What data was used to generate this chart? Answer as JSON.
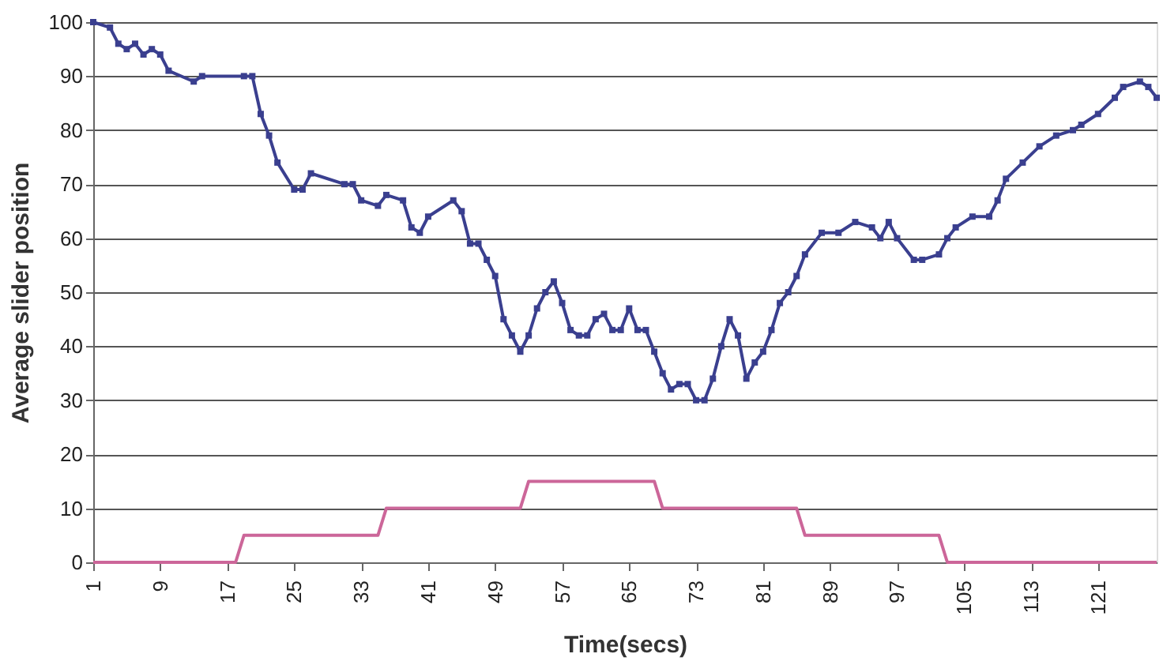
{
  "chart_data": {
    "type": "line",
    "xlabel": "Time(secs)",
    "ylabel": "Average slider position",
    "xlim": [
      1,
      128
    ],
    "xticks": [
      1,
      9,
      17,
      25,
      33,
      41,
      49,
      57,
      65,
      73,
      81,
      89,
      97,
      105,
      113,
      121
    ],
    "ylim": [
      0,
      100
    ],
    "yticks": [
      0,
      10,
      20,
      30,
      40,
      50,
      60,
      70,
      80,
      90,
      100
    ],
    "grid": "y",
    "series": [
      {
        "color": "#3a3f8f",
        "marker": "square",
        "x": [
          1,
          3,
          4,
          5,
          6,
          7,
          8,
          9,
          10,
          13,
          14,
          19,
          20,
          21,
          22,
          23,
          25,
          26,
          27,
          31,
          32,
          33,
          35,
          36,
          38,
          39,
          40,
          41,
          44,
          45,
          46,
          47,
          48,
          49,
          50,
          51,
          52,
          53,
          54,
          55,
          56,
          57,
          58,
          59,
          60,
          61,
          62,
          63,
          64,
          65,
          66,
          67,
          68,
          69,
          70,
          71,
          72,
          73,
          74,
          75,
          76,
          77,
          78,
          79,
          80,
          81,
          82,
          83,
          84,
          85,
          86,
          88,
          90,
          92,
          94,
          95,
          96,
          97,
          99,
          100,
          102,
          103,
          104,
          106,
          108,
          109,
          110,
          112,
          114,
          116,
          118,
          119,
          121,
          123,
          124,
          126,
          127,
          128
        ],
        "values": [
          100,
          99,
          96,
          95,
          96,
          94,
          95,
          94,
          91,
          89,
          90,
          90,
          90,
          83,
          79,
          74,
          69,
          69,
          72,
          70,
          70,
          67,
          66,
          68,
          67,
          62,
          61,
          64,
          67,
          65,
          59,
          59,
          56,
          53,
          45,
          42,
          39,
          42,
          47,
          50,
          52,
          48,
          43,
          42,
          42,
          45,
          46,
          43,
          43,
          47,
          43,
          43,
          39,
          35,
          32,
          33,
          33,
          30,
          30,
          34,
          40,
          45,
          42,
          34,
          37,
          39,
          43,
          48,
          50,
          53,
          57,
          61,
          61,
          63,
          62,
          60,
          63,
          60,
          56,
          56,
          57,
          60,
          62,
          64,
          64,
          67,
          71,
          74,
          77,
          79,
          80,
          81,
          83,
          86,
          88,
          89,
          88,
          86
        ]
      },
      {
        "color": "#cc6699",
        "marker": "none",
        "x": [
          1,
          18,
          19,
          35,
          36,
          52,
          53,
          68,
          69,
          85,
          86,
          102,
          103,
          128
        ],
        "values": [
          0,
          0,
          5,
          5,
          10,
          10,
          15,
          15,
          10,
          10,
          5,
          5,
          0,
          0
        ]
      }
    ]
  }
}
